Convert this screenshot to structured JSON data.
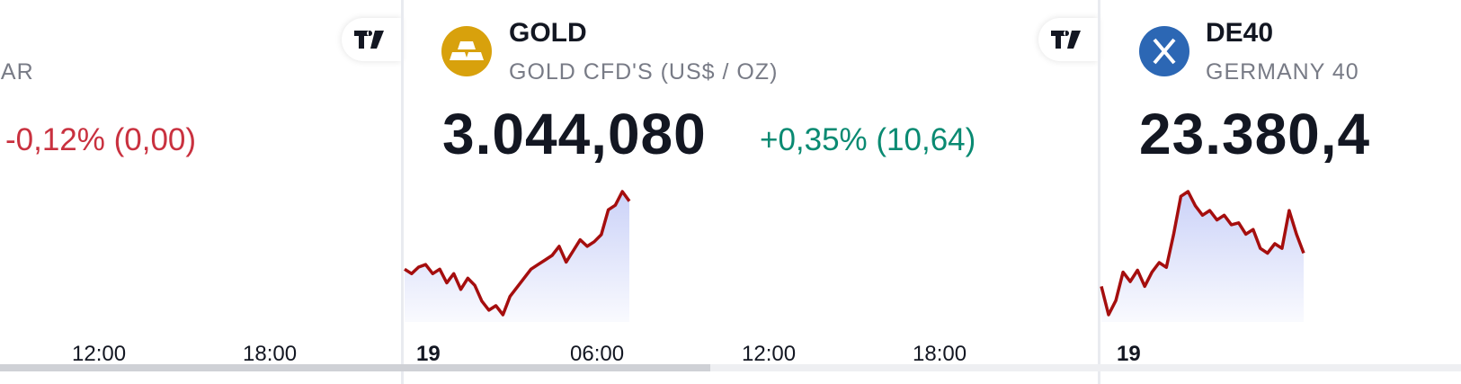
{
  "tickers": [
    {
      "symbol_partial": "LAR",
      "change": "-0,12% (0,00)",
      "time_labels": [
        "12:00",
        "18:00"
      ]
    },
    {
      "symbol": "GOLD",
      "description": "GOLD CFD'S (US$ / OZ)",
      "price": "3.044,080",
      "change": "+0,35% (10,64)",
      "time_labels": [
        "19",
        "06:00",
        "12:00",
        "18:00"
      ],
      "sparkline": [
        3030.7,
        3029.8,
        3031.1,
        3031.6,
        3029.8,
        3030.7,
        3028.0,
        3029.8,
        3026.7,
        3028.9,
        3027.5,
        3024.4,
        3022.6,
        3023.5,
        3021.7,
        3025.3,
        3027.1,
        3028.9,
        3030.7,
        3031.6,
        3032.5,
        3033.4,
        3035.2,
        3032.1,
        3034.3,
        3036.5,
        3035.2,
        3036.1,
        3037.5,
        3042.4,
        3043.3,
        3046.0,
        3044.1
      ]
    },
    {
      "symbol": "DE40",
      "description": "GERMANY 40",
      "price": "23.380,4",
      "time_labels": [
        "19"
      ],
      "sparkline": [
        23275,
        23185,
        23230,
        23320,
        23290,
        23326,
        23275,
        23320,
        23350,
        23335,
        23440,
        23560,
        23575,
        23530,
        23500,
        23515,
        23485,
        23500,
        23470,
        23476,
        23440,
        23455,
        23395,
        23380,
        23410,
        23395,
        23515,
        23440,
        23380
      ]
    }
  ]
}
